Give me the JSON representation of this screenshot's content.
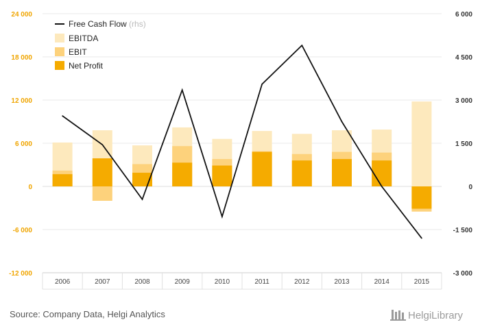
{
  "chart_data": {
    "type": "bar",
    "categories": [
      "2006",
      "2007",
      "2008",
      "2009",
      "2010",
      "2011",
      "2012",
      "2013",
      "2014",
      "2015"
    ],
    "series": [
      {
        "name": "EBITDA",
        "kind": "bar",
        "axis": "left",
        "color": "#fde9bd",
        "values": [
          6100,
          7800,
          5700,
          8200,
          6600,
          7700,
          7300,
          7800,
          7900,
          11800
        ]
      },
      {
        "name": "EBIT",
        "kind": "bar",
        "axis": "left",
        "color": "#fdd27c",
        "values": [
          2200,
          -2000,
          3100,
          5600,
          3800,
          4900,
          4500,
          4800,
          4700,
          -3500
        ]
      },
      {
        "name": "Net Profit",
        "kind": "bar",
        "axis": "left",
        "color": "#f5ab00",
        "values": [
          1700,
          3900,
          1900,
          3300,
          2900,
          4800,
          3600,
          3800,
          3600,
          -3100
        ]
      },
      {
        "name": "Free Cash Flow",
        "note": "(rhs)",
        "kind": "line",
        "axis": "right",
        "color": "#111111",
        "values": [
          2450,
          1450,
          -450,
          3350,
          -1050,
          3550,
          4900,
          2250,
          0,
          -1800
        ]
      }
    ],
    "y_left": {
      "ticks": [
        24000,
        18000,
        12000,
        6000,
        0,
        -6000,
        -12000
      ],
      "labels": [
        "24 000",
        "18 000",
        "12 000",
        "6 000",
        "0",
        "-6 000",
        "-12 000"
      ],
      "range": [
        -12000,
        24000
      ],
      "color": "#f0a500"
    },
    "y_right": {
      "ticks": [
        6000,
        4500,
        3000,
        1500,
        0,
        -1500,
        -3000
      ],
      "labels": [
        "6 000",
        "4 500",
        "3 000",
        "1 500",
        "0",
        "-1 500",
        "-3 000"
      ],
      "range": [
        -3000,
        6000
      ],
      "color": "#333333"
    },
    "grid": true,
    "legend_position": "top-left"
  },
  "source": "Source: Company Data, Helgi Analytics",
  "brand": "HelgiLibrary"
}
